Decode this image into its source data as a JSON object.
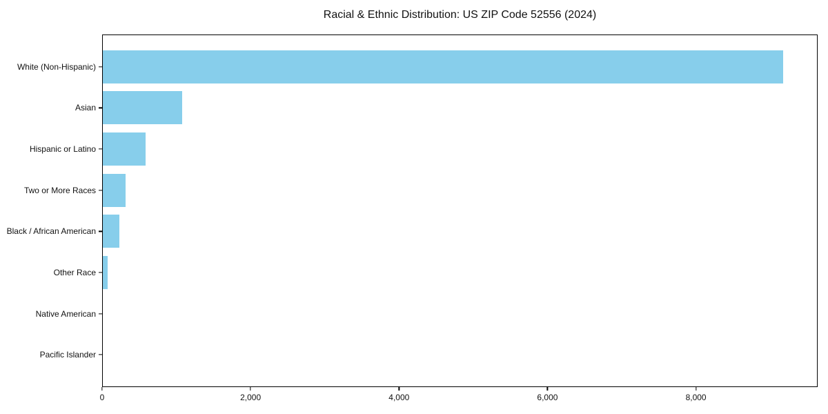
{
  "chart_data": {
    "type": "bar",
    "orientation": "horizontal",
    "title": "Racial & Ethnic Distribution: US ZIP Code 52556 (2024)",
    "categories": [
      "White (Non-Hispanic)",
      "Asian",
      "Hispanic or Latino",
      "Two or More Races",
      "Black / African American",
      "Other Race",
      "Native American",
      "Pacific Islander"
    ],
    "values": [
      9180,
      1075,
      577,
      307,
      223,
      65,
      0,
      0
    ],
    "bar_color": "#87CEEB",
    "xlabel": "",
    "ylabel": "",
    "xlim": [
      0,
      9640
    ],
    "xticks": [
      {
        "value": 0,
        "label": "0"
      },
      {
        "value": 2000,
        "label": "2,000"
      },
      {
        "value": 4000,
        "label": "4,000"
      },
      {
        "value": 6000,
        "label": "6,000"
      },
      {
        "value": 8000,
        "label": "8,000"
      }
    ],
    "grid": false,
    "legend": "none",
    "spine_box": true
  }
}
